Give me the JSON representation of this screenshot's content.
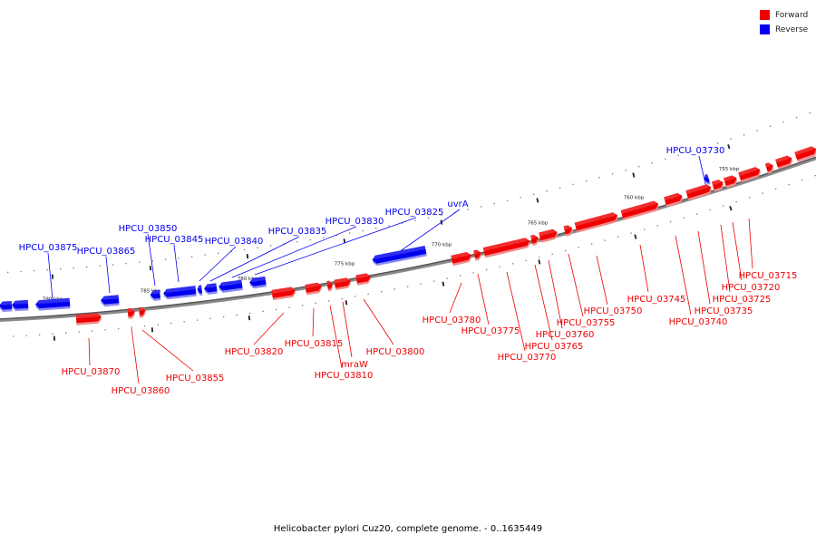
{
  "caption": "Helicobacter pylori Cuz20, complete genome. - 0..1635449",
  "legend": [
    {
      "label": "Forward",
      "color": "#ee0000"
    },
    {
      "label": "Reverse",
      "color": "#0000ee"
    }
  ],
  "colors": {
    "forward": "#ee0000",
    "reverse": "#0000ee",
    "backbone": "#777777"
  },
  "scale": {
    "ticks": [
      "755 kbp",
      "760 kbp",
      "765 kbp",
      "770 kbp",
      "775 kbp",
      "780 kbp",
      "785 kbp",
      "790 kbp"
    ]
  },
  "genes": [
    {
      "name": "HPCU_03730",
      "strand": "reverse"
    },
    {
      "name": "uvrA",
      "strand": "reverse"
    },
    {
      "name": "HPCU_03825",
      "strand": "reverse"
    },
    {
      "name": "HPCU_03830",
      "strand": "reverse"
    },
    {
      "name": "HPCU_03835",
      "strand": "reverse"
    },
    {
      "name": "HPCU_03840",
      "strand": "reverse"
    },
    {
      "name": "HPCU_03845",
      "strand": "reverse"
    },
    {
      "name": "HPCU_03850",
      "strand": "reverse"
    },
    {
      "name": "HPCU_03865",
      "strand": "reverse"
    },
    {
      "name": "HPCU_03875",
      "strand": "reverse"
    },
    {
      "name": "HPCU_03715",
      "strand": "forward"
    },
    {
      "name": "HPCU_03720",
      "strand": "forward"
    },
    {
      "name": "HPCU_03725",
      "strand": "forward"
    },
    {
      "name": "HPCU_03735",
      "strand": "forward"
    },
    {
      "name": "HPCU_03740",
      "strand": "forward"
    },
    {
      "name": "HPCU_03745",
      "strand": "forward"
    },
    {
      "name": "HPCU_03750",
      "strand": "forward"
    },
    {
      "name": "HPCU_03755",
      "strand": "forward"
    },
    {
      "name": "HPCU_03760",
      "strand": "forward"
    },
    {
      "name": "HPCU_03765",
      "strand": "forward"
    },
    {
      "name": "HPCU_03770",
      "strand": "forward"
    },
    {
      "name": "HPCU_03775",
      "strand": "forward"
    },
    {
      "name": "HPCU_03780",
      "strand": "forward"
    },
    {
      "name": "HPCU_03800",
      "strand": "forward"
    },
    {
      "name": "mraW",
      "strand": "forward"
    },
    {
      "name": "HPCU_03810",
      "strand": "forward"
    },
    {
      "name": "HPCU_03815",
      "strand": "forward"
    },
    {
      "name": "HPCU_03820",
      "strand": "forward"
    },
    {
      "name": "HPCU_03855",
      "strand": "forward"
    },
    {
      "name": "HPCU_03860",
      "strand": "forward"
    },
    {
      "name": "HPCU_03870",
      "strand": "forward"
    }
  ]
}
